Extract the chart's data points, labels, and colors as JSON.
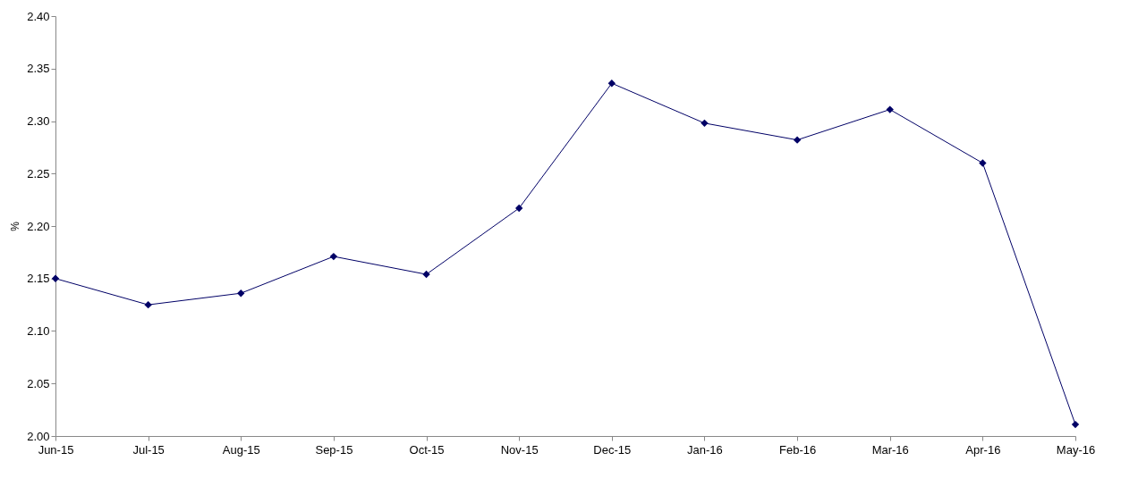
{
  "chart_data": {
    "type": "line",
    "ylabel": "%",
    "categories": [
      "Jun-15",
      "Jul-15",
      "Aug-15",
      "Sep-15",
      "Oct-15",
      "Nov-15",
      "Dec-15",
      "Jan-16",
      "Feb-16",
      "Mar-16",
      "Apr-16",
      "May-16"
    ],
    "series": [
      {
        "color": "#000066",
        "values": [
          2.15,
          2.125,
          2.136,
          2.171,
          2.154,
          2.217,
          2.336,
          2.298,
          2.282,
          2.311,
          2.26,
          2.011
        ]
      }
    ],
    "ylim": [
      2.0,
      2.4
    ],
    "yticks": [
      {
        "value": 2.0,
        "label": "2.00"
      },
      {
        "value": 2.05,
        "label": "2.05"
      },
      {
        "value": 2.1,
        "label": "2.10"
      },
      {
        "value": 2.15,
        "label": "2.15"
      },
      {
        "value": 2.2,
        "label": "2.20"
      },
      {
        "value": 2.25,
        "label": "2.25"
      },
      {
        "value": 2.3,
        "label": "2.30"
      },
      {
        "value": 2.35,
        "label": "2.35"
      },
      {
        "value": 2.4,
        "label": "2.40"
      }
    ],
    "grid": false,
    "marker": "diamond",
    "line_style": "solid"
  }
}
